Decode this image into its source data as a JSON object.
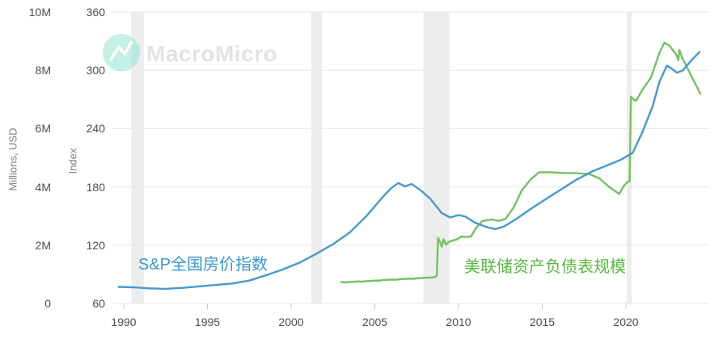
{
  "watermark": {
    "brand": "MacroMicro",
    "logo_icon": "macromicro-logo",
    "circle_color": "#93e4d0",
    "text_color": "#e0e5e2"
  },
  "series_labels": {
    "sp": {
      "text": "S&P全国房价指数",
      "color": "#3a96cf"
    },
    "fed": {
      "text": "美联储资产负债表规模",
      "color": "#58ba3e"
    }
  },
  "axes": {
    "left_usd": {
      "title": "Millions, USD",
      "ticks": [
        "10M",
        "8M",
        "6M",
        "4M",
        "2M",
        "0"
      ]
    },
    "left_index": {
      "title": "Index",
      "ticks": [
        "360",
        "300",
        "240",
        "180",
        "120",
        "60"
      ]
    },
    "x": {
      "ticks": [
        "1990",
        "1995",
        "2000",
        "2005",
        "2010",
        "2015",
        "2020"
      ]
    }
  },
  "colors": {
    "sp_line": "#4599cf",
    "fed_line": "#72c161",
    "grid": "#e7e7e7",
    "recession_band": "#ededed",
    "x_tick_mark": "#c9c9c9",
    "tick_text": "#4d4d4d",
    "axis_title_text": "#7d7d7d"
  },
  "chart_data": {
    "type": "line",
    "title": "",
    "grid": true,
    "legend_position": "inline-labels",
    "x_axis": {
      "tick_years": [
        1990,
        1995,
        2000,
        2005,
        2010,
        2015,
        2020
      ],
      "range": [
        1989.3,
        2024.9
      ]
    },
    "y_axis_index": {
      "label": "Index",
      "range": [
        60,
        360
      ],
      "ticks": [
        360,
        300,
        240,
        180,
        120,
        60
      ]
    },
    "y_axis_millions_usd": {
      "label": "Millions, USD",
      "range_millions": [
        0,
        10000000
      ],
      "ticks": [
        "10M",
        "8M",
        "6M",
        "4M",
        "2M",
        "0"
      ]
    },
    "recession_bands_years": [
      [
        1990.45,
        1991.2
      ],
      [
        2001.2,
        2001.85
      ],
      [
        2007.9,
        2009.45
      ],
      [
        2020.05,
        2020.35
      ]
    ],
    "series": [
      {
        "name": "美联储资产负债表规模",
        "axis": "millions_usd",
        "unit": "trillions USD (axis in millions)",
        "color": "#72c161",
        "points": [
          [
            2003.0,
            0.73
          ],
          [
            2003.25,
            0.72
          ],
          [
            2003.5,
            0.74
          ],
          [
            2003.75,
            0.735
          ],
          [
            2004.0,
            0.755
          ],
          [
            2004.25,
            0.75
          ],
          [
            2004.5,
            0.765
          ],
          [
            2004.75,
            0.77
          ],
          [
            2005.0,
            0.785
          ],
          [
            2005.25,
            0.78
          ],
          [
            2005.5,
            0.8
          ],
          [
            2005.75,
            0.81
          ],
          [
            2006.0,
            0.82
          ],
          [
            2006.25,
            0.815
          ],
          [
            2006.5,
            0.83
          ],
          [
            2006.75,
            0.84
          ],
          [
            2007.0,
            0.85
          ],
          [
            2007.25,
            0.845
          ],
          [
            2007.5,
            0.86
          ],
          [
            2007.75,
            0.87
          ],
          [
            2008.0,
            0.88
          ],
          [
            2008.25,
            0.885
          ],
          [
            2008.55,
            0.9
          ],
          [
            2008.7,
            0.95
          ],
          [
            2008.78,
            2.25
          ],
          [
            2008.9,
            2.1
          ],
          [
            2009.0,
            1.95
          ],
          [
            2009.1,
            2.2
          ],
          [
            2009.25,
            2.02
          ],
          [
            2009.4,
            2.1
          ],
          [
            2009.6,
            2.15
          ],
          [
            2009.9,
            2.2
          ],
          [
            2010.2,
            2.3
          ],
          [
            2010.5,
            2.28
          ],
          [
            2010.75,
            2.3
          ],
          [
            2011.0,
            2.55
          ],
          [
            2011.4,
            2.82
          ],
          [
            2011.7,
            2.86
          ],
          [
            2012.0,
            2.88
          ],
          [
            2012.4,
            2.83
          ],
          [
            2012.8,
            2.9
          ],
          [
            2013.3,
            3.3
          ],
          [
            2013.8,
            3.9
          ],
          [
            2014.3,
            4.25
          ],
          [
            2014.8,
            4.5
          ],
          [
            2015.5,
            4.5
          ],
          [
            2016.2,
            4.48
          ],
          [
            2017.0,
            4.47
          ],
          [
            2017.8,
            4.44
          ],
          [
            2018.4,
            4.3
          ],
          [
            2019.0,
            4.0
          ],
          [
            2019.6,
            3.76
          ],
          [
            2019.9,
            4.05
          ],
          [
            2020.1,
            4.17
          ],
          [
            2020.22,
            4.2
          ],
          [
            2020.3,
            7.1
          ],
          [
            2020.45,
            7.0
          ],
          [
            2020.6,
            6.95
          ],
          [
            2021.0,
            7.35
          ],
          [
            2021.5,
            7.75
          ],
          [
            2022.0,
            8.6
          ],
          [
            2022.3,
            8.95
          ],
          [
            2022.6,
            8.85
          ],
          [
            2023.0,
            8.55
          ],
          [
            2023.13,
            8.35
          ],
          [
            2023.2,
            8.7
          ],
          [
            2023.35,
            8.45
          ],
          [
            2023.7,
            8.05
          ],
          [
            2024.0,
            7.7
          ],
          [
            2024.45,
            7.2
          ]
        ]
      },
      {
        "name": "S&P全国房价指数",
        "axis": "index",
        "unit": "index",
        "color": "#4599cf",
        "points": [
          [
            1989.7,
            77
          ],
          [
            1990.6,
            76.5
          ],
          [
            1991.5,
            75.5
          ],
          [
            1992.5,
            75
          ],
          [
            1993.5,
            76
          ],
          [
            1994.5,
            77.5
          ],
          [
            1995.5,
            79
          ],
          [
            1996.5,
            80.5
          ],
          [
            1997.5,
            83.5
          ],
          [
            1998.5,
            89
          ],
          [
            1999.5,
            95
          ],
          [
            2000.5,
            102
          ],
          [
            2001.5,
            111
          ],
          [
            2002.5,
            121
          ],
          [
            2003.5,
            133
          ],
          [
            2004.5,
            150
          ],
          [
            2005.5,
            170
          ],
          [
            2006.0,
            179
          ],
          [
            2006.4,
            184
          ],
          [
            2006.8,
            180.5
          ],
          [
            2007.2,
            183
          ],
          [
            2007.7,
            177
          ],
          [
            2008.3,
            168
          ],
          [
            2009.0,
            153
          ],
          [
            2009.5,
            148.5
          ],
          [
            2010.0,
            151
          ],
          [
            2010.4,
            149.5
          ],
          [
            2011.0,
            143
          ],
          [
            2011.7,
            138.5
          ],
          [
            2012.2,
            136.5
          ],
          [
            2012.7,
            139
          ],
          [
            2013.5,
            147.5
          ],
          [
            2014.2,
            156
          ],
          [
            2015.0,
            165
          ],
          [
            2016.0,
            176
          ],
          [
            2017.0,
            187
          ],
          [
            2018.0,
            196
          ],
          [
            2019.0,
            203
          ],
          [
            2019.7,
            208
          ],
          [
            2020.4,
            215
          ],
          [
            2021.0,
            237
          ],
          [
            2021.6,
            263
          ],
          [
            2022.0,
            288
          ],
          [
            2022.45,
            305
          ],
          [
            2022.8,
            301
          ],
          [
            2023.05,
            297.5
          ],
          [
            2023.4,
            300
          ],
          [
            2024.0,
            312
          ],
          [
            2024.4,
            319
          ]
        ]
      }
    ]
  }
}
